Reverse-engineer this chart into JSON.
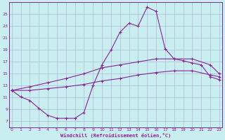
{
  "bg_color": "#c8eef0",
  "grid_color": "#b0b8d8",
  "line_color": "#882299",
  "xlabel": "Windchill (Refroidissement éolien,°C)",
  "xlabel_color": "#882299",
  "ylabel_ticks": [
    7,
    9,
    11,
    13,
    15,
    17,
    19,
    21,
    23,
    25
  ],
  "xlabel_ticks": [
    0,
    1,
    2,
    3,
    4,
    5,
    6,
    7,
    8,
    9,
    10,
    11,
    12,
    13,
    14,
    15,
    16,
    17,
    18,
    19,
    20,
    21,
    22,
    23
  ],
  "xlim": [
    -0.3,
    23.3
  ],
  "ylim": [
    6.0,
    27.0
  ],
  "line1_x": [
    0,
    1,
    2,
    3,
    4,
    5,
    6,
    7,
    8,
    9,
    10,
    11,
    12,
    13,
    14,
    15,
    16,
    17,
    18,
    19,
    20,
    21,
    22,
    23
  ],
  "line1_y": [
    12.2,
    11.1,
    10.5,
    9.2,
    8.0,
    7.5,
    7.5,
    7.5,
    8.5,
    13.0,
    16.5,
    19.0,
    22.0,
    23.5,
    23.0,
    26.2,
    25.5,
    19.2,
    17.5,
    17.2,
    16.8,
    16.5,
    14.5,
    14.0
  ],
  "line2_x": [
    0,
    2,
    4,
    6,
    8,
    10,
    12,
    14,
    16,
    18,
    20,
    22,
    23
  ],
  "line2_y": [
    12.2,
    12.8,
    13.5,
    14.2,
    15.0,
    16.0,
    16.5,
    17.0,
    17.5,
    17.5,
    17.5,
    16.5,
    15.0
  ],
  "line3_x": [
    0,
    2,
    4,
    6,
    8,
    10,
    12,
    14,
    16,
    18,
    20,
    22,
    23
  ],
  "line3_y": [
    12.2,
    12.2,
    12.5,
    12.8,
    13.2,
    13.8,
    14.2,
    14.8,
    15.2,
    15.5,
    15.5,
    14.8,
    14.5
  ]
}
